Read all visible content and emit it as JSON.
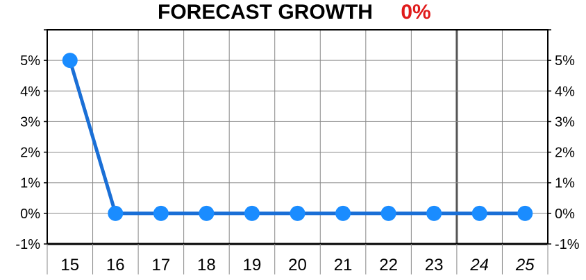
{
  "colors": {
    "line": "#1a6fd6",
    "marker": "#1a8cff",
    "growth_value": "#e01b1b",
    "grid": "#888888",
    "axis": "#000000"
  },
  "chart_data": {
    "type": "line",
    "title": "FORECAST GROWTH",
    "title_value": "0%",
    "categories": [
      "15",
      "16",
      "17",
      "18",
      "19",
      "20",
      "21",
      "22",
      "23",
      "24",
      "25"
    ],
    "forecast_categories": [
      "24",
      "25"
    ],
    "series": [
      {
        "values": [
          5,
          0,
          0,
          0,
          0,
          0,
          0,
          0,
          0,
          0,
          0
        ]
      }
    ],
    "ylim": [
      -1,
      6
    ],
    "yticks": [
      5,
      4,
      3,
      2,
      1,
      0,
      -1
    ],
    "ytick_labels": [
      "5%",
      "4%",
      "3%",
      "2%",
      "1%",
      "0%",
      "-1%"
    ],
    "grid": true,
    "right_axis": true
  }
}
